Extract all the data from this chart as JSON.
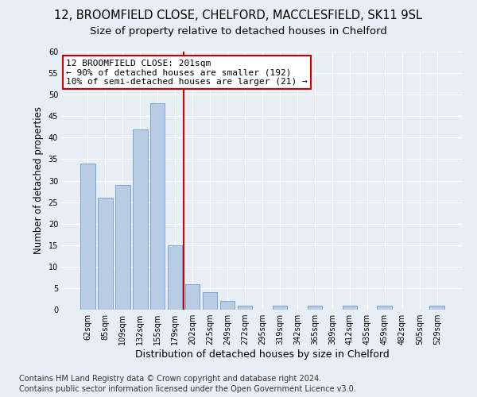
{
  "title": "12, BROOMFIELD CLOSE, CHELFORD, MACCLESFIELD, SK11 9SL",
  "subtitle": "Size of property relative to detached houses in Chelford",
  "xlabel": "Distribution of detached houses by size in Chelford",
  "ylabel": "Number of detached properties",
  "categories": [
    "62sqm",
    "85sqm",
    "109sqm",
    "132sqm",
    "155sqm",
    "179sqm",
    "202sqm",
    "225sqm",
    "249sqm",
    "272sqm",
    "295sqm",
    "319sqm",
    "342sqm",
    "365sqm",
    "389sqm",
    "412sqm",
    "435sqm",
    "459sqm",
    "482sqm",
    "505sqm",
    "529sqm"
  ],
  "values": [
    34,
    26,
    29,
    42,
    48,
    15,
    6,
    4,
    2,
    1,
    0,
    1,
    0,
    1,
    0,
    1,
    0,
    1,
    0,
    0,
    1
  ],
  "bar_color": "#b8cce4",
  "bar_edgecolor": "#5b8ec4",
  "vline_color": "#cc0000",
  "vline_x": 5.5,
  "annotation_text": "12 BROOMFIELD CLOSE: 201sqm\n← 90% of detached houses are smaller (192)\n10% of semi-detached houses are larger (21) →",
  "annotation_box_edgecolor": "#cc0000",
  "annotation_box_facecolor": "#ffffff",
  "ylim": [
    0,
    60
  ],
  "yticks": [
    0,
    5,
    10,
    15,
    20,
    25,
    30,
    35,
    40,
    45,
    50,
    55,
    60
  ],
  "footer1": "Contains HM Land Registry data © Crown copyright and database right 2024.",
  "footer2": "Contains public sector information licensed under the Open Government Licence v3.0.",
  "title_fontsize": 10.5,
  "subtitle_fontsize": 9.5,
  "ylabel_fontsize": 8.5,
  "xlabel_fontsize": 9,
  "tick_fontsize": 7,
  "annotation_fontsize": 8,
  "footer_fontsize": 7,
  "bg_color": "#e8eef5"
}
